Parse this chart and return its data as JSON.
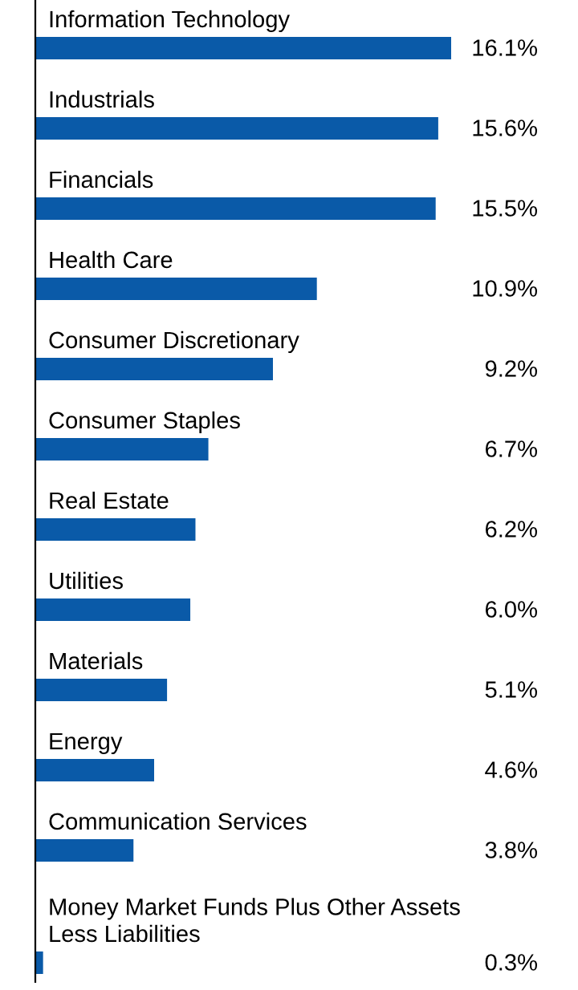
{
  "chart_data": {
    "type": "bar",
    "orientation": "horizontal",
    "categories": [
      "Information Technology",
      "Industrials",
      "Financials",
      "Health Care",
      "Consumer Discretionary",
      "Consumer Staples",
      "Real Estate",
      "Utilities",
      "Materials",
      "Energy",
      "Communication Services",
      "Money Market Funds Plus Other Assets\nLess Liabilities"
    ],
    "values": [
      16.1,
      15.6,
      15.5,
      10.9,
      9.2,
      6.7,
      6.2,
      6.0,
      5.1,
      4.6,
      3.8,
      0.3
    ],
    "value_labels": [
      "16.1%",
      "15.6%",
      "15.5%",
      "10.9%",
      "9.2%",
      "6.7%",
      "6.2%",
      "6.0%",
      "5.1%",
      "4.6%",
      "3.8%",
      "0.3%"
    ],
    "color": "#0a5aa8"
  }
}
